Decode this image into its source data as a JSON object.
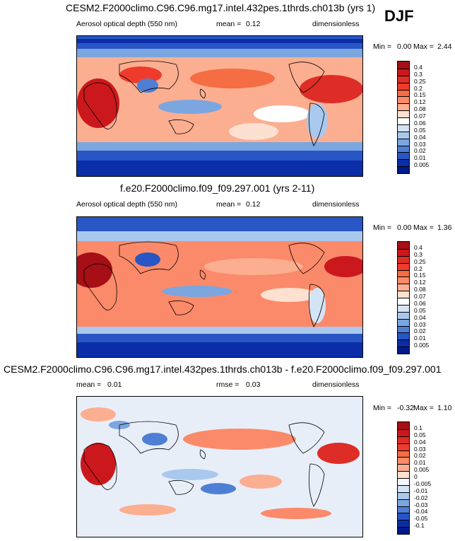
{
  "season": "DJF",
  "panels": [
    {
      "title": "CESM2.F2000climo.C96.C96.mg17.intel.432pes.1thrds.ch013b (yrs 1)",
      "left_label": "Aerosol optical depth (550 nm)",
      "mean_label": "mean =",
      "mean_value": "0.12",
      "units": "dimensionless",
      "min_label": "Min =",
      "min_value": "0.00",
      "max_label": "Max =",
      "max_value": "2.44",
      "colorbar": {
        "levels": [
          "0.4",
          "0.3",
          "0.25",
          "0.2",
          "0.15",
          "0.12",
          "0.08",
          "0.07",
          "0.06",
          "0.05",
          "0.04",
          "0.03",
          "0.02",
          "0.01",
          "0.005"
        ],
        "colors": [
          "#a50f15",
          "#cb181d",
          "#de2d26",
          "#ef3b2c",
          "#f46d43",
          "#fb8a6a",
          "#fcae91",
          "#fde0cf",
          "#ffffff",
          "#d4e4f7",
          "#a9c8ee",
          "#7ba6e0",
          "#4f7fd4",
          "#2856c4",
          "#0b2ea8",
          "#001a8a"
        ]
      }
    },
    {
      "title": "f.e20.F2000climo.f09_f09.297.001 (yrs 2-11)",
      "left_label": "Aerosol optical depth (550 nm)",
      "mean_label": "mean =",
      "mean_value": "0.12",
      "units": "dimensionless",
      "min_label": "Min =",
      "min_value": "0.00",
      "max_label": "Max =",
      "max_value": "1.36",
      "colorbar": {
        "levels": [
          "0.4",
          "0.3",
          "0.25",
          "0.2",
          "0.15",
          "0.12",
          "0.08",
          "0.07",
          "0.06",
          "0.05",
          "0.04",
          "0.03",
          "0.02",
          "0.01",
          "0.005"
        ],
        "colors": [
          "#a50f15",
          "#cb181d",
          "#de2d26",
          "#ef3b2c",
          "#f46d43",
          "#fb8a6a",
          "#fcae91",
          "#fde0cf",
          "#ffffff",
          "#d4e4f7",
          "#a9c8ee",
          "#7ba6e0",
          "#4f7fd4",
          "#2856c4",
          "#0b2ea8",
          "#001a8a"
        ]
      }
    },
    {
      "title": "CESM2.F2000climo.C96.C96.mg17.intel.432pes.1thrds.ch013b - f.e20.F2000climo.f09_f09.297.001",
      "mean_label": "mean =",
      "mean_value": "0.01",
      "rmse_label": "rmse =",
      "rmse_value": "0.03",
      "units": "dimensionless",
      "min_label": "Min =",
      "min_value": "-0.32",
      "max_label": "Max =",
      "max_value": "1.10",
      "colorbar": {
        "levels": [
          "0.1",
          "0.05",
          "0.04",
          "0.03",
          "0.02",
          "0.01",
          "0.005",
          "0",
          "-0.005",
          "-0.01",
          "-0.02",
          "-0.03",
          "-0.04",
          "-0.05",
          "-0.1"
        ],
        "colors": [
          "#a50f15",
          "#cb181d",
          "#de2d26",
          "#ef3b2c",
          "#f46d43",
          "#fb8a6a",
          "#fcae91",
          "#fde0cf",
          "#f4f7fb",
          "#d4e4f7",
          "#a9c8ee",
          "#7ba6e0",
          "#4f7fd4",
          "#2856c4",
          "#0b2ea8",
          "#001a8a"
        ]
      }
    }
  ]
}
